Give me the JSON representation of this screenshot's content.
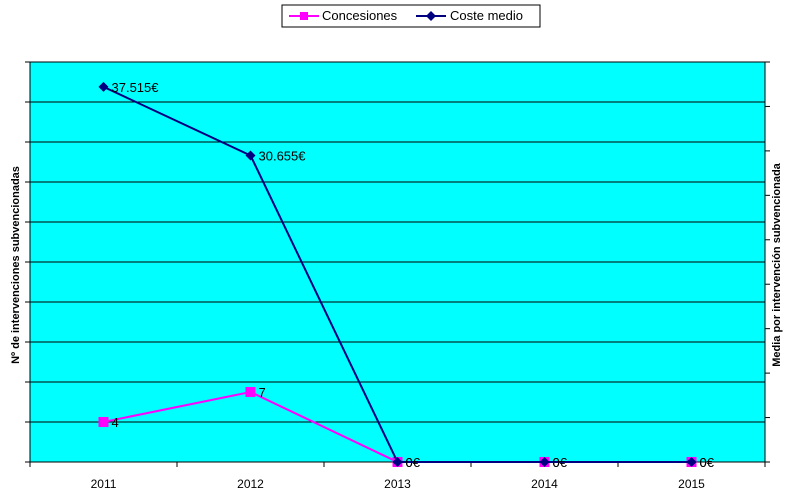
{
  "chart_data": {
    "type": "line",
    "title": "",
    "categories": [
      "2011",
      "2012",
      "2013",
      "2014",
      "2015"
    ],
    "ylabel_left": "Nº de intervenciones subvencionadas",
    "ylabel_right": "Media por intervención subvencionada",
    "legend_position": "top-center",
    "grid": true,
    "plot_background": "#00ffff",
    "left_axis": {
      "min": 0,
      "max": 40
    },
    "right_axis": {
      "min": 0,
      "max": 40000
    },
    "series": [
      {
        "name": "Concesiones",
        "axis": "left",
        "color": "#ff00ff",
        "marker": "square",
        "values": [
          4,
          7,
          0,
          0,
          0
        ],
        "labels": [
          "4",
          "7",
          "0",
          "0",
          "0"
        ]
      },
      {
        "name": "Coste medio",
        "axis": "right",
        "color": "#000080",
        "marker": "diamond",
        "values": [
          37515,
          30655,
          0,
          0,
          0
        ],
        "labels": [
          "37.515€",
          "30.655€",
          "0€",
          "0€",
          "0€"
        ]
      }
    ]
  }
}
